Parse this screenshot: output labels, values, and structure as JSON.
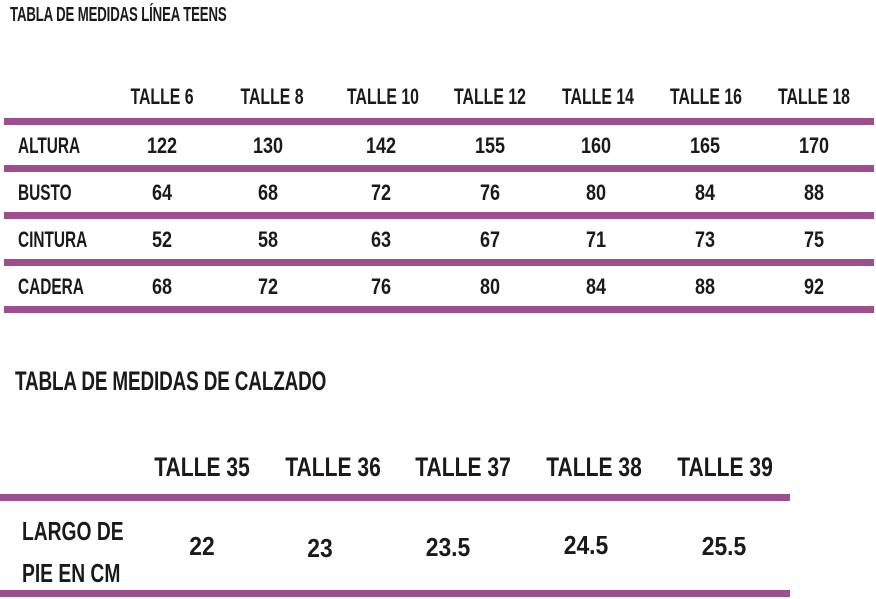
{
  "table1": {
    "title": "TABLA DE MEDIDAS LÍNEA TEENS",
    "headers": [
      "TALLE 6",
      "TALLE 8",
      "TALLE 10",
      "TALLE 12",
      "TALLE 14",
      "TALLE 16",
      "TALLE 18"
    ],
    "rows": [
      {
        "label": "ALTURA",
        "values": [
          "122",
          "130",
          "142",
          "155",
          "160",
          "165",
          "170"
        ]
      },
      {
        "label": "BUSTO",
        "values": [
          "64",
          "68",
          "72",
          "76",
          "80",
          "84",
          "88"
        ]
      },
      {
        "label": "CINTURA",
        "values": [
          "52",
          "58",
          "63",
          "67",
          "71",
          "73",
          "75"
        ]
      },
      {
        "label": "CADERA",
        "values": [
          "68",
          "72",
          "76",
          "80",
          "84",
          "88",
          "92"
        ]
      }
    ]
  },
  "table2": {
    "title": "TABLA DE MEDIDAS DE CALZADO",
    "headers": [
      "TALLE 35",
      "TALLE 36",
      "TALLE 37",
      "TALLE 38",
      "TALLE 39"
    ],
    "row": {
      "label_line1": "LARGO DE",
      "label_line2": "PIE EN CM",
      "values": [
        "22",
        "23",
        "23.5",
        "24.5",
        "25.5"
      ]
    }
  },
  "colors": {
    "accent": "#9c4e8e",
    "text": "#1a1a1a",
    "background": "#ffffff"
  }
}
